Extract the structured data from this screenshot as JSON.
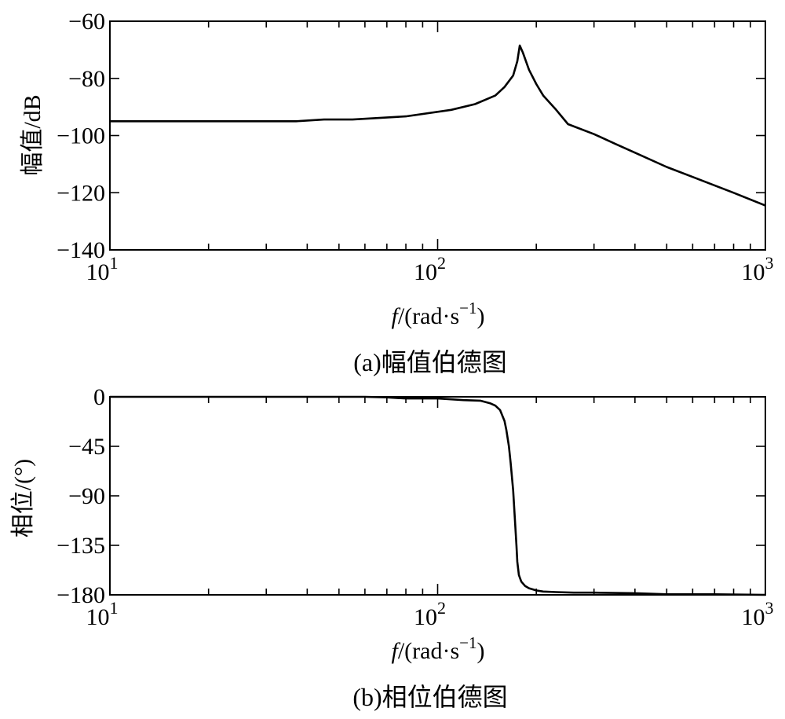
{
  "figure": {
    "caption_a": "(a)幅值伯德图",
    "caption_b": "(b)相位伯德图"
  },
  "chart_data": [
    {
      "type": "line",
      "title": "",
      "xlabel": "f/(rad·s⁻¹)",
      "ylabel": "幅值/dB",
      "xscale": "log",
      "xlim": [
        10,
        1000
      ],
      "ylim": [
        -140,
        -60
      ],
      "xtick_values": [
        10,
        100,
        1000
      ],
      "xtick_base": "10",
      "xtick_exponents": [
        "1",
        "2",
        "3"
      ],
      "yticks": [
        -60,
        -80,
        -100,
        -120,
        -140
      ],
      "ytick_labels": [
        "−60",
        "−80",
        "−100",
        "−120",
        "−140"
      ],
      "grid": false,
      "legend": "none",
      "series": [
        {
          "color": "#000000",
          "x": [
            10,
            20,
            37,
            45,
            55,
            80,
            110,
            130,
            150,
            160,
            170,
            175,
            178,
            182,
            190,
            200,
            210,
            230,
            250,
            300,
            350,
            400,
            500,
            600,
            800,
            1000
          ],
          "y": [
            -95,
            -95,
            -95,
            -94.4,
            -94.4,
            -93.3,
            -91,
            -89,
            -86,
            -83,
            -79,
            -74,
            -68.5,
            -71,
            -77,
            -82,
            -86,
            -91,
            -96,
            -99.5,
            -103,
            -106,
            -111,
            -114.5,
            -120,
            -124.5
          ]
        }
      ]
    },
    {
      "type": "line",
      "title": "",
      "xlabel": "f/(rad·s⁻¹)",
      "ylabel": "相位/(°)",
      "xscale": "log",
      "xlim": [
        10,
        1000
      ],
      "ylim": [
        -180,
        0
      ],
      "xtick_values": [
        10,
        100,
        1000
      ],
      "xtick_base": "10",
      "xtick_exponents": [
        "1",
        "2",
        "3"
      ],
      "yticks": [
        0,
        -45,
        -90,
        -135,
        -180
      ],
      "ytick_labels": [
        "0",
        "−45",
        "−90",
        "−135",
        "−180"
      ],
      "grid": false,
      "legend": "none",
      "series": [
        {
          "color": "#000000",
          "x": [
            10,
            30,
            60,
            70,
            80,
            100,
            120,
            135,
            145,
            150,
            155,
            160,
            162,
            165,
            167,
            170,
            172,
            174,
            175,
            177,
            180,
            185,
            190,
            200,
            210,
            230,
            260,
            300,
            400,
            500,
            700,
            1000
          ],
          "y": [
            0,
            0,
            0,
            -0.5,
            -1.5,
            -1.5,
            -3,
            -3.5,
            -6,
            -8,
            -12,
            -22,
            -30,
            -45,
            -60,
            -85,
            -110,
            -135,
            -150,
            -162,
            -168,
            -172,
            -174,
            -176,
            -177,
            -177.5,
            -178,
            -178,
            -178.5,
            -179.5,
            -179.5,
            -180
          ]
        }
      ]
    }
  ]
}
